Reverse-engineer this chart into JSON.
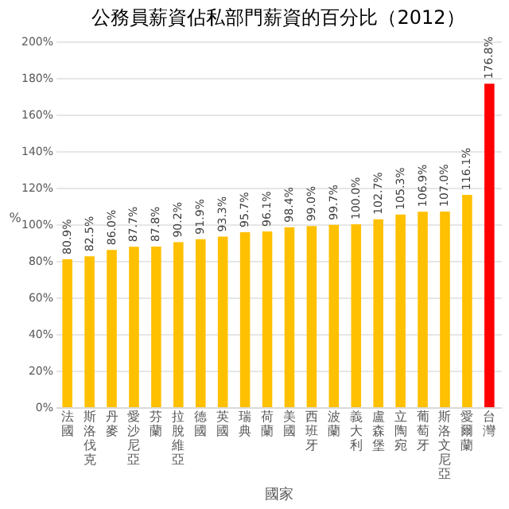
{
  "chart_data": {
    "type": "bar",
    "title": "公務員薪資佔私部門薪資的百分比（2012）",
    "xlabel": "國家",
    "ylabel": "%",
    "categories": [
      "法國",
      "斯洛伐克",
      "丹麥",
      "愛沙尼亞",
      "芬蘭",
      "拉脫維亞",
      "德國",
      "英國",
      "瑞典",
      "荷蘭",
      "美國",
      "西班牙",
      "波蘭",
      "義大利",
      "盧森堡",
      "立陶宛",
      "葡萄牙",
      "斯洛文尼亞",
      "愛爾蘭",
      "台灣"
    ],
    "values": [
      80.9,
      82.5,
      86.0,
      87.7,
      87.8,
      90.2,
      91.9,
      93.3,
      95.7,
      96.1,
      98.4,
      99.0,
      99.7,
      100.0,
      102.7,
      105.3,
      106.9,
      107.0,
      116.1,
      176.8
    ],
    "value_labels": [
      "80.9%",
      "82.5%",
      "86.0%",
      "87.7%",
      "87.8%",
      "90.2%",
      "91.9%",
      "93.3%",
      "95.7%",
      "96.1%",
      "98.4%",
      "99.0%",
      "99.7%",
      "100.0%",
      "102.7%",
      "105.3%",
      "106.9%",
      "107.0%",
      "116.1%",
      "176.8%"
    ],
    "colors": [
      "#ffc000",
      "#ffc000",
      "#ffc000",
      "#ffc000",
      "#ffc000",
      "#ffc000",
      "#ffc000",
      "#ffc000",
      "#ffc000",
      "#ffc000",
      "#ffc000",
      "#ffc000",
      "#ffc000",
      "#ffc000",
      "#ffc000",
      "#ffc000",
      "#ffc000",
      "#ffc000",
      "#ffc000",
      "#ff0000"
    ],
    "ylim": [
      0,
      200
    ],
    "yticks": [
      {
        "value": 0,
        "label": "0%"
      },
      {
        "value": 20,
        "label": "20%"
      },
      {
        "value": 40,
        "label": "40%"
      },
      {
        "value": 60,
        "label": "60%"
      },
      {
        "value": 80,
        "label": "80%"
      },
      {
        "value": 100,
        "label": "100%"
      },
      {
        "value": 120,
        "label": "120%"
      },
      {
        "value": 140,
        "label": "140%"
      },
      {
        "value": 160,
        "label": "160%"
      },
      {
        "value": 180,
        "label": "180%"
      },
      {
        "value": 200,
        "label": "200%"
      }
    ],
    "grid": "y"
  }
}
